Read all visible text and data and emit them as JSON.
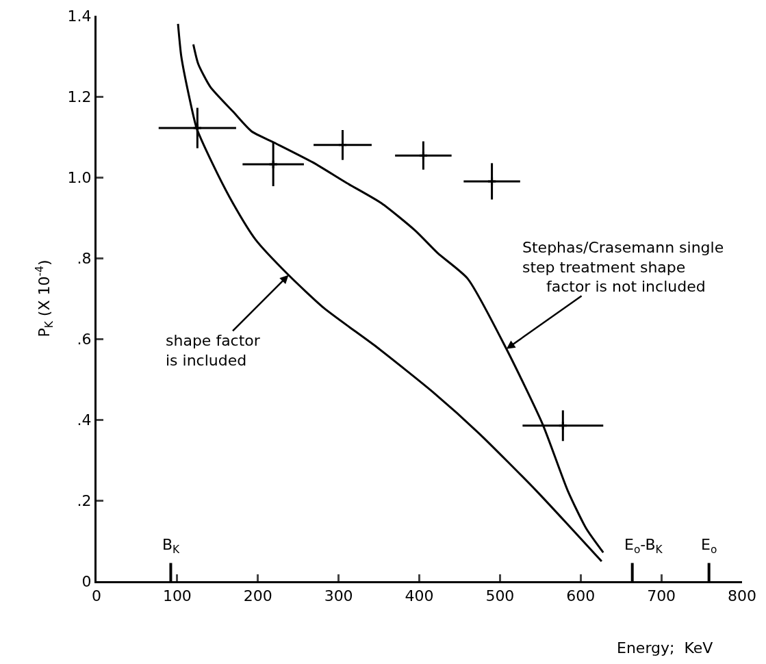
{
  "chart_data": {
    "type": "line",
    "xlabel": "Energy;  KeV",
    "ylabel": "P$_{K}$ (X 10$^{-4}$)",
    "xlim": [
      0,
      800
    ],
    "xticks": [
      0,
      100,
      200,
      300,
      400,
      500,
      600,
      700,
      800
    ],
    "ylim": [
      0,
      1.4
    ],
    "yticks": [
      0,
      {
        "value": 0.2,
        "label": ".2"
      },
      {
        "value": 0.4,
        "label": ".4"
      },
      {
        "value": 0.6,
        "label": ".6"
      },
      {
        "value": 0.8,
        "label": ".8"
      },
      {
        "value": 1.0,
        "label": "1.0"
      },
      {
        "value": 1.2,
        "label": "1.2"
      },
      {
        "value": 1.4,
        "label": "1.4"
      }
    ],
    "grid": false,
    "marker": "none",
    "line_style": "solid",
    "series": [
      {
        "color": "#000000",
        "x": [
          101,
          105,
          114,
          124,
          143,
          169,
          197,
          238,
          282,
          347,
          417,
          474,
          545,
          626
        ],
        "values": [
          1.38,
          1.3,
          1.207,
          1.122,
          1.037,
          0.936,
          0.846,
          0.758,
          0.676,
          0.58,
          0.468,
          0.366,
          0.224,
          0.049
        ]
      },
      {
        "color": "#000000",
        "x": [
          120,
          126,
          141,
          169,
          192,
          220,
          268,
          310,
          353,
          395,
          423,
          460,
          508,
          553,
          584,
          607,
          628
        ],
        "values": [
          1.329,
          1.281,
          1.224,
          1.163,
          1.114,
          1.086,
          1.037,
          0.986,
          0.936,
          0.868,
          0.812,
          0.749,
          0.575,
          0.388,
          0.224,
          0.13,
          0.071
        ]
      },
      {
        "type": "scatter",
        "color": "#000000",
        "marker": "cross",
        "x": [
          125,
          219,
          305,
          405,
          490,
          578
        ],
        "values": [
          1.122,
          1.032,
          1.08,
          1.054,
          0.99,
          0.385
        ],
        "errors": [
          0.05,
          0.054,
          0.037,
          0.035,
          0.045,
          0.038
        ],
        "xerrors": [
          48,
          38,
          36,
          35,
          35,
          50
        ]
      }
    ],
    "ref_lines": [
      {
        "axis": "x",
        "value": 92,
        "label": "B$_{K}$"
      },
      {
        "axis": "x",
        "value": 664,
        "label": "E$_{o}$-B$_{K}$"
      },
      {
        "axis": "x",
        "value": 759,
        "label": "E$_{o}$"
      }
    ],
    "annotations": [
      {
        "text": "shape factor\nis included",
        "x": 238,
        "y": 0.758
      },
      {
        "text": "Stephas/Crasemann single\nstep treatment shape\n     factor is not included",
        "x": 508,
        "y": 0.575
      }
    ]
  }
}
